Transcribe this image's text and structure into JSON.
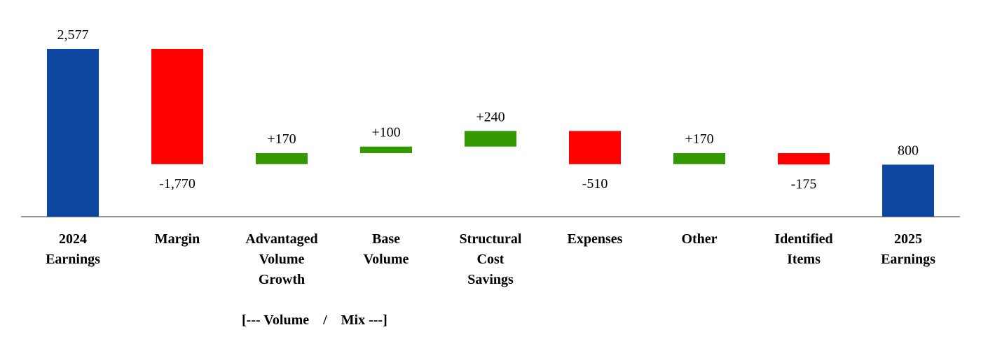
{
  "chart_data": {
    "type": "waterfall",
    "categories": [
      "2024 Earnings",
      "Margin",
      "Advantaged Volume Growth",
      "Base Volume",
      "Structural Cost Savings",
      "Expenses",
      "Other",
      "Identified Items",
      "2025 Earnings"
    ],
    "measures": [
      "total",
      "relative",
      "relative",
      "relative",
      "relative",
      "relative",
      "relative",
      "relative",
      "total"
    ],
    "values": [
      2577,
      -1770,
      170,
      100,
      240,
      -510,
      170,
      -175,
      800
    ],
    "value_labels": [
      "2,577",
      "-1,770",
      "+170",
      "+100",
      "+240",
      "-510",
      "+170",
      "-175",
      "800"
    ],
    "colors": {
      "total": "#0d47a1",
      "increase": "#339900",
      "decrease": "#ff0000"
    },
    "annotation": "[--- Volume    /    Mix ---]"
  }
}
